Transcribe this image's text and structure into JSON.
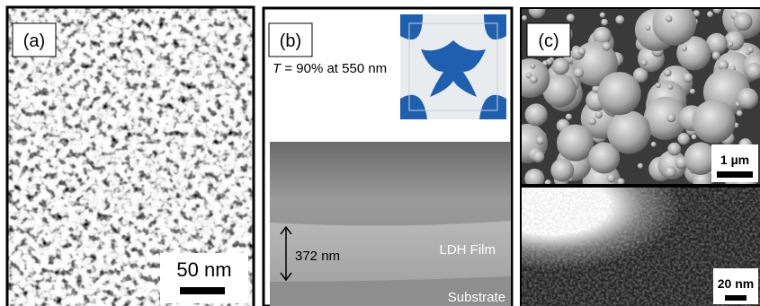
{
  "panels": [
    {
      "label": "(a)",
      "scale_bar": "50 nm"
    },
    {
      "label": "(b)",
      "annotation": {
        "symbol": "T",
        "text": "= 90% at 550 nm"
      },
      "thickness": "372 nm",
      "layers": [
        "LDH Film",
        "Substrate"
      ]
    },
    {
      "label": "(c)",
      "scale_bars": [
        "1 µm",
        "20 nm"
      ]
    }
  ]
}
